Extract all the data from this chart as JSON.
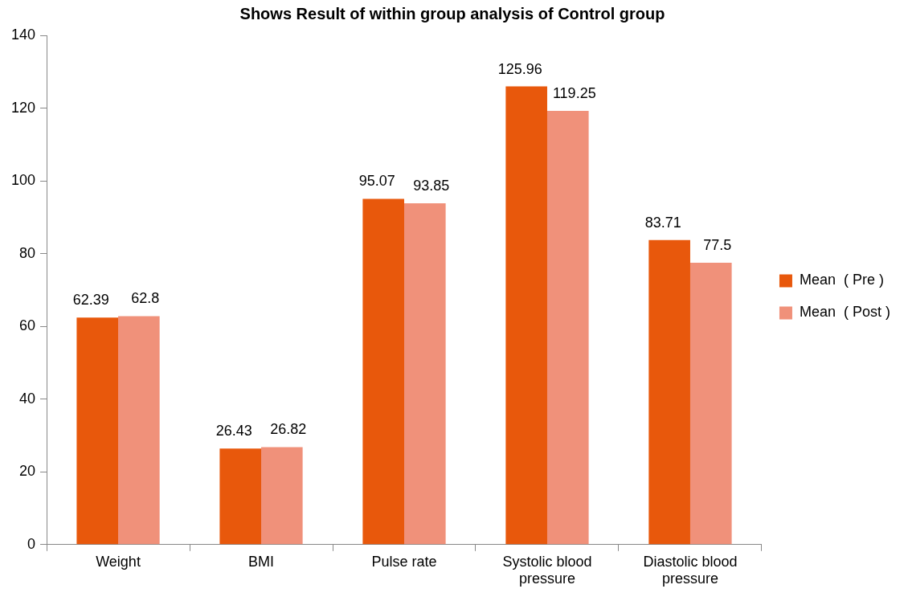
{
  "chart_data": {
    "type": "bar",
    "title": "Shows Result of within group analysis of Control group",
    "categories": [
      "Weight",
      "BMI",
      "Pulse rate",
      "Systolic blood pressure",
      "Diastolic blood pressure"
    ],
    "series": [
      {
        "name": "Mean  ( Pre )",
        "color": "#e8580c",
        "values": [
          62.39,
          26.43,
          95.07,
          125.96,
          83.71
        ]
      },
      {
        "name": "Mean  ( Post )",
        "color": "#f0917a",
        "values": [
          62.8,
          26.82,
          93.85,
          119.25,
          77.5
        ]
      }
    ],
    "ylim": [
      0,
      140
    ],
    "yticks": [
      0,
      20,
      40,
      60,
      80,
      100,
      120,
      140
    ],
    "grid": false,
    "legend": "right",
    "data_labels": true
  }
}
